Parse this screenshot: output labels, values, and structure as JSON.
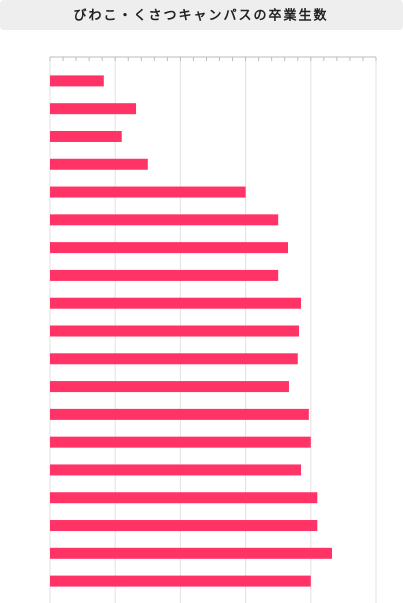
{
  "chart_data": {
    "type": "barh",
    "title": "びわこ・くさつキャンパスの卒業生数",
    "categories": [
      null,
      null,
      null,
      null,
      null,
      null,
      null,
      null,
      null,
      null,
      null,
      null,
      null,
      null,
      null,
      null,
      null,
      null,
      null
    ],
    "values": [
      16.5,
      26.4,
      22,
      30,
      60,
      70,
      73,
      70,
      77,
      76.4,
      76,
      73.3,
      79.4,
      80,
      77,
      82,
      82,
      86.5,
      80
    ],
    "color": "#ff3366",
    "xlim": [
      0,
      100
    ],
    "xticks": [
      0,
      20,
      40,
      60,
      80,
      100
    ],
    "xminorticks": [
      0,
      4,
      8,
      12,
      16,
      20,
      24,
      28,
      32,
      36,
      40,
      44,
      48,
      52,
      56,
      60,
      64,
      68,
      72,
      76,
      80,
      84,
      88,
      92,
      96,
      100
    ],
    "grid": true
  }
}
